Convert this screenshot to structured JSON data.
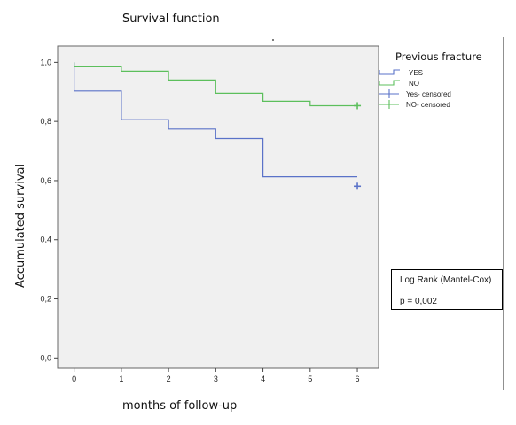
{
  "chart_data": {
    "type": "line",
    "subtype": "kaplan-meier-step",
    "title": "Survival function",
    "xlabel": "months of follow-up",
    "ylabel": "Accumulated survival",
    "x_ticks": [
      0,
      1,
      2,
      3,
      4,
      5,
      6
    ],
    "y_ticks": [
      "0,0",
      "0,2",
      "0,4",
      "0,6",
      "0,8",
      "1,0"
    ],
    "y_tick_values": [
      0.0,
      0.2,
      0.4,
      0.6,
      0.8,
      1.0
    ],
    "xlim": [
      -0.35,
      6.45
    ],
    "ylim": [
      -0.035,
      1.055
    ],
    "grid": false,
    "background": "#f0f0f0",
    "legend": {
      "title": "Previous fracture",
      "position": "top-right",
      "entries": [
        "YES",
        "NO",
        "Yes- censored",
        "NO- censored"
      ]
    },
    "series": [
      {
        "name": "YES",
        "color": "#5a72c8",
        "steps": [
          [
            0,
            1.0
          ],
          [
            0,
            0.903
          ],
          [
            1,
            0.903
          ],
          [
            1,
            0.806
          ],
          [
            2,
            0.806
          ],
          [
            2,
            0.774
          ],
          [
            3,
            0.774
          ],
          [
            3,
            0.742
          ],
          [
            4,
            0.742
          ],
          [
            4,
            0.613
          ],
          [
            6,
            0.613
          ]
        ],
        "censored": [
          [
            6,
            0.581
          ]
        ]
      },
      {
        "name": "NO",
        "color": "#5cbf5c",
        "steps": [
          [
            0,
            1.0
          ],
          [
            0,
            0.985
          ],
          [
            1,
            0.985
          ],
          [
            1,
            0.97
          ],
          [
            2,
            0.97
          ],
          [
            2,
            0.94
          ],
          [
            3,
            0.94
          ],
          [
            3,
            0.895
          ],
          [
            4,
            0.895
          ],
          [
            4,
            0.868
          ],
          [
            5,
            0.868
          ],
          [
            5,
            0.853
          ],
          [
            6,
            0.853
          ]
        ],
        "censored": [
          [
            6,
            0.853
          ]
        ]
      }
    ]
  },
  "logrank": {
    "title": "Log Rank (Mantel-Cox)",
    "p_value": "p = 0,002"
  }
}
